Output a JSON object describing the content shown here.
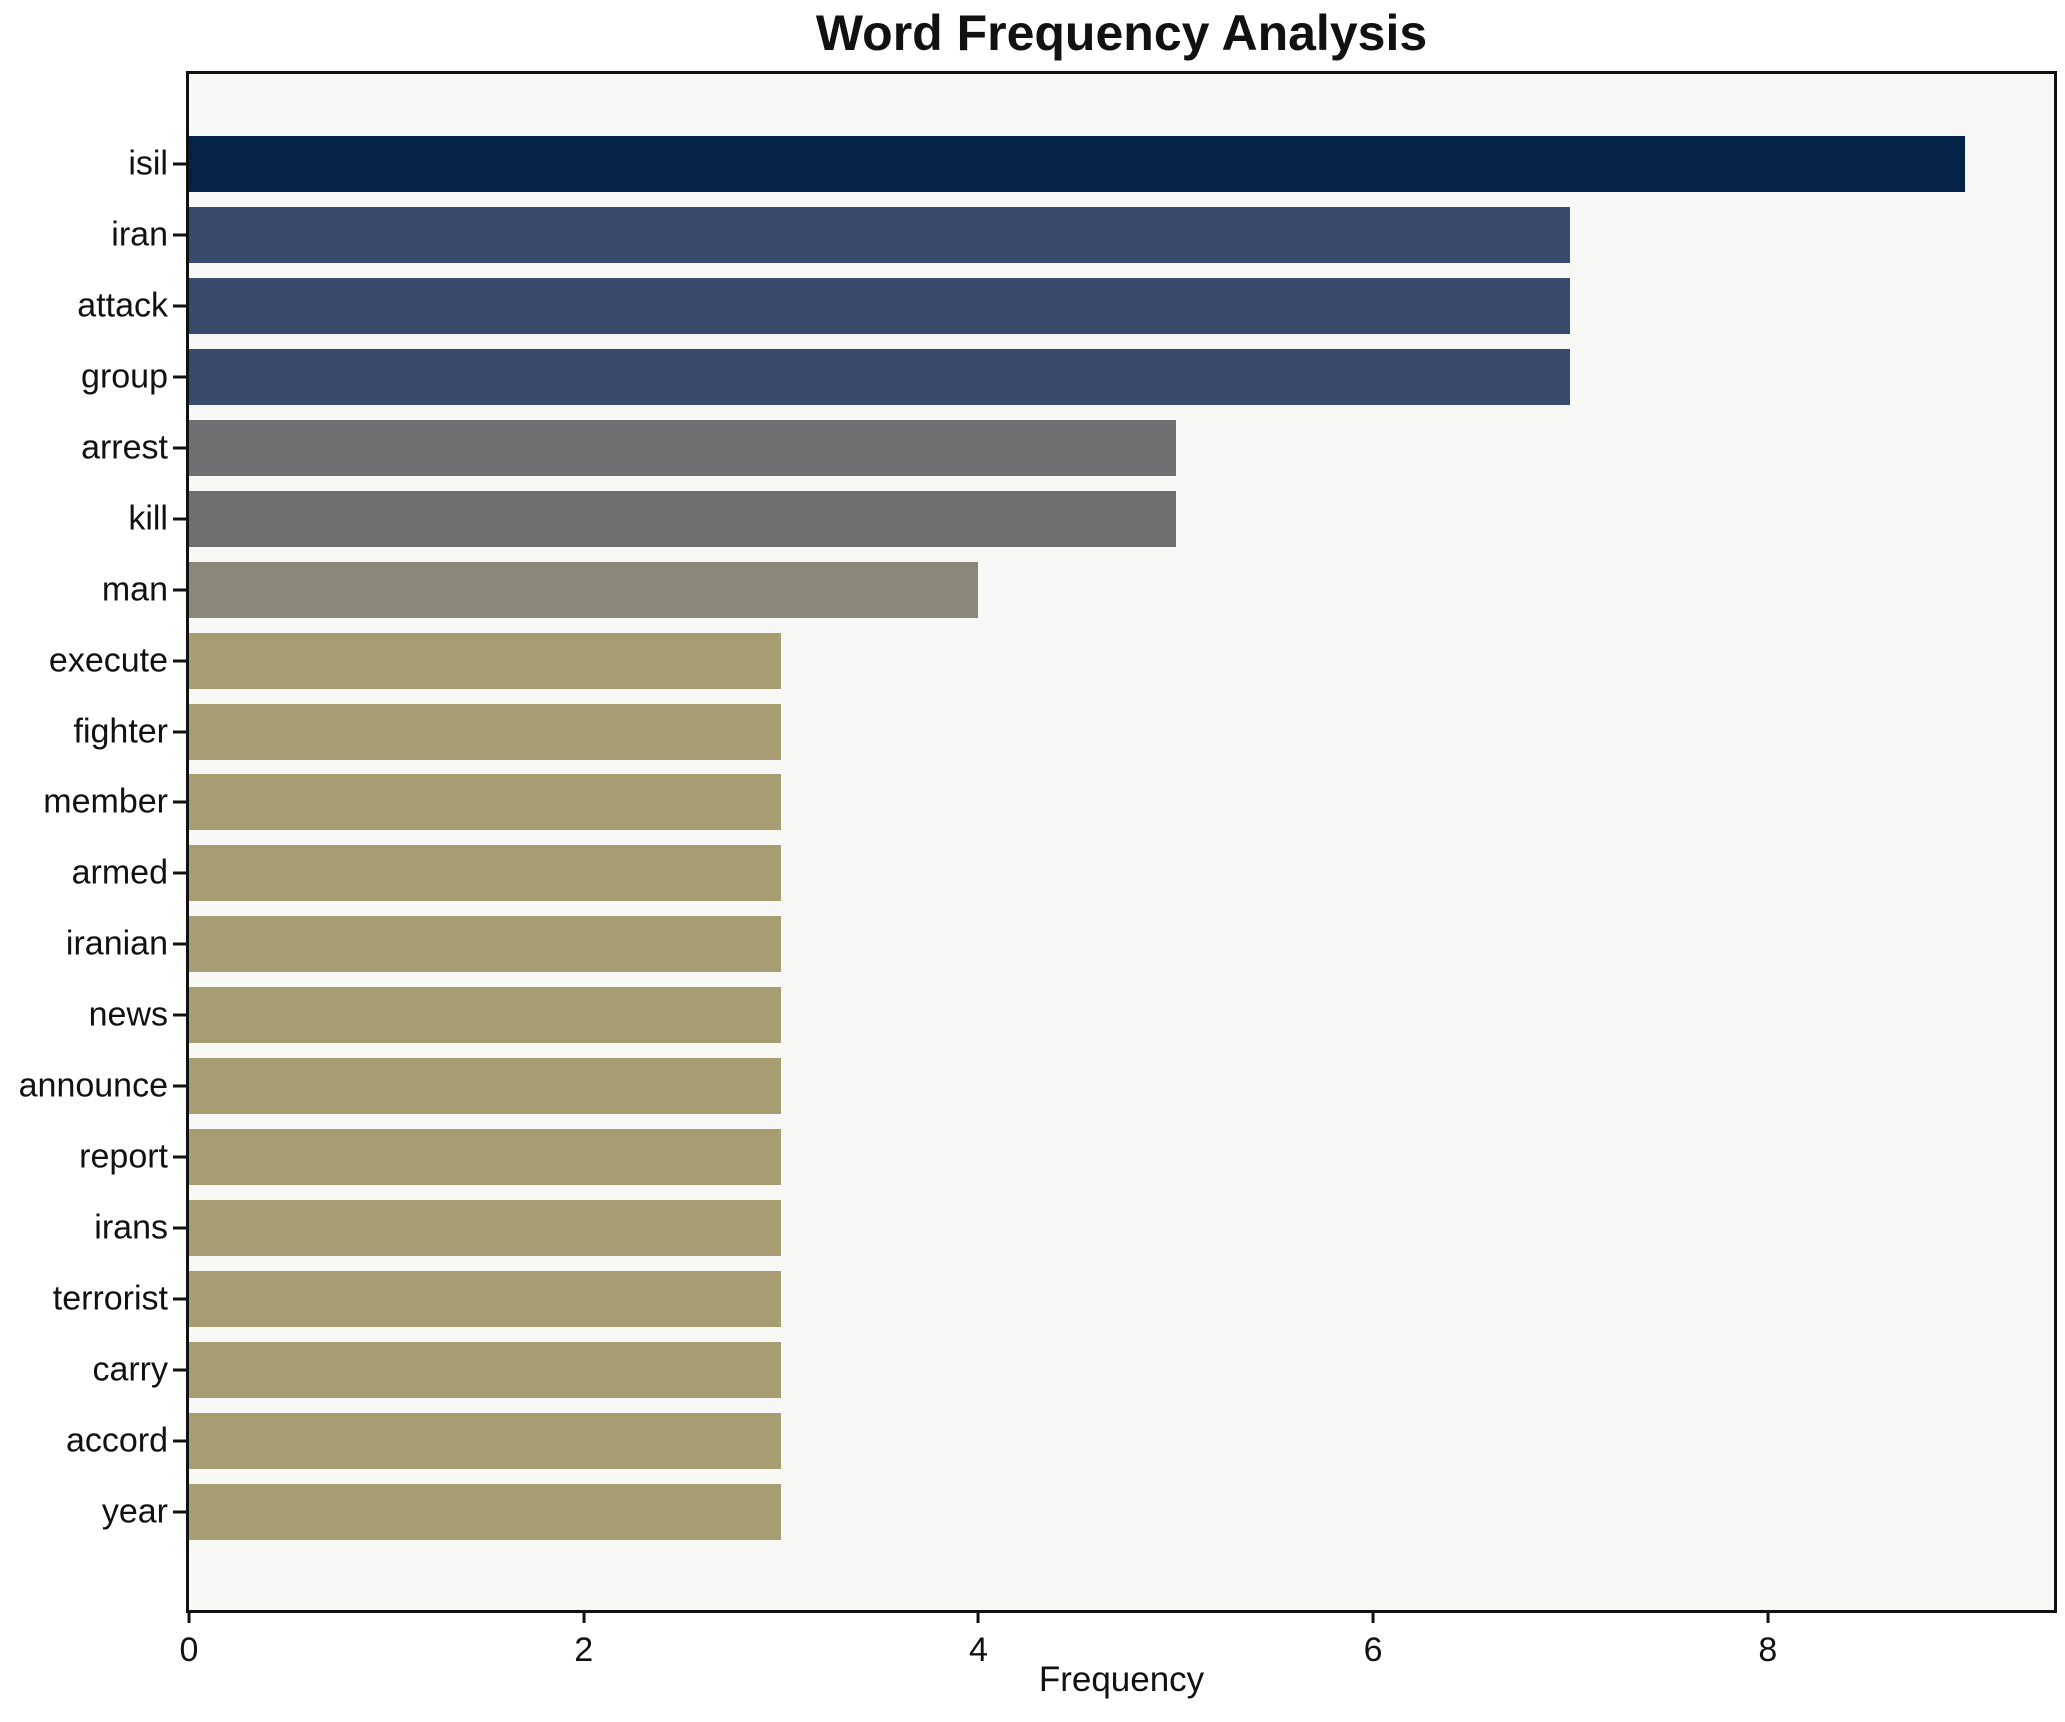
{
  "title": "Word Frequency Analysis",
  "xlabel": "Frequency",
  "chart_data": {
    "type": "bar",
    "orientation": "horizontal",
    "title": "Word Frequency Analysis",
    "xlabel": "Frequency",
    "ylabel": "",
    "categories": [
      "isil",
      "iran",
      "attack",
      "group",
      "arrest",
      "kill",
      "man",
      "execute",
      "fighter",
      "member",
      "armed",
      "iranian",
      "news",
      "announce",
      "report",
      "irans",
      "terrorist",
      "carry",
      "accord",
      "year"
    ],
    "values": [
      9,
      7,
      7,
      7,
      5,
      5,
      4,
      3,
      3,
      3,
      3,
      3,
      3,
      3,
      3,
      3,
      3,
      3,
      3,
      3
    ],
    "bar_colors": [
      "#052349",
      "#3a4a6c",
      "#3a4a6c",
      "#3a4a6c",
      "#6e6f70",
      "#6e6f70",
      "#8a8876",
      "#a69d72",
      "#a69d72",
      "#a69d72",
      "#a69d72",
      "#a69d72",
      "#a69d72",
      "#a69d72",
      "#a69d72",
      "#a69d72",
      "#a69d72",
      "#a69d72",
      "#a69d72",
      "#a69d72"
    ],
    "xlim": [
      0,
      9.45
    ],
    "xticks": [
      0,
      2,
      4,
      6,
      8
    ],
    "grid": false,
    "legend": null,
    "plot_background": "#f7f7f6",
    "figure_background": "#ffffff",
    "axis_color": "#111111"
  }
}
